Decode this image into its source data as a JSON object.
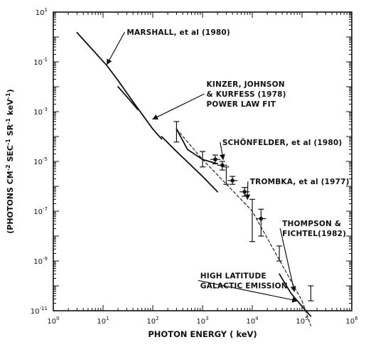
{
  "chart_data": {
    "type": "line",
    "title": "",
    "xlabel": "PHOTON ENERGY ( keV)",
    "ylabel": "(PHOTONS CM-2 SEC-1 SR-1 keV-1)",
    "ylabel_parts": [
      "(PHOTONS CM",
      "-2",
      " SEC",
      "-1",
      " SR",
      "-1",
      " keV",
      "-1",
      ")"
    ],
    "xscale": "log",
    "yscale": "log",
    "xlim": [
      1,
      1000000
    ],
    "ylim": [
      1e-11,
      10
    ],
    "grid": false,
    "x_ticks": [
      {
        "base": "10",
        "exp": "0"
      },
      {
        "base": "10",
        "exp": "1"
      },
      {
        "base": "10",
        "exp": "2"
      },
      {
        "base": "10",
        "exp": "3"
      },
      {
        "base": "10",
        "exp": "4"
      },
      {
        "base": "10",
        "exp": "5"
      },
      {
        "base": "10",
        "exp": "6"
      }
    ],
    "y_ticks": [
      {
        "base": "10",
        "exp": "1"
      },
      {
        "base": "10",
        "exp": "-1"
      },
      {
        "base": "10",
        "exp": "-3"
      },
      {
        "base": "10",
        "exp": "-5"
      },
      {
        "base": "10",
        "exp": "-7"
      },
      {
        "base": "10",
        "exp": "-9"
      },
      {
        "base": "10",
        "exp": "-11"
      }
    ],
    "series": [
      {
        "style": "solid",
        "x": [
          3,
          12,
          20,
          40,
          100,
          150
        ],
        "y": [
          1.5,
          0.07,
          0.018,
          0.0025,
          0.0002,
          8e-05
        ]
      },
      {
        "style": "solid",
        "x": [
          20,
          30,
          50
        ],
        "y": [
          0.01,
          0.004,
          0.0012
        ]
      },
      {
        "style": "solid",
        "x": [
          150,
          300,
          1000,
          2000
        ],
        "y": [
          0.0001,
          2.5e-05,
          2.5e-06,
          6e-07
        ]
      },
      {
        "style": "solid",
        "x": [
          300,
          500,
          1000,
          2000
        ],
        "y": [
          0.0002,
          3e-05,
          1.2e-05,
          8e-06
        ]
      },
      {
        "style": "dashed",
        "x": [
          300,
          1000,
          10000,
          100000,
          150000
        ],
        "y": [
          0.0002,
          1.2e-05,
          1e-07,
          2.5e-11,
          2.5e-12
        ]
      },
      {
        "style": "solid",
        "x": [
          35000,
          60000,
          100000,
          150000
        ],
        "y": [
          3e-10,
          5e-11,
          1.5e-11,
          6e-12
        ]
      }
    ],
    "error_points": [
      {
        "x": 300,
        "y": 0.00015,
        "ylo": 6e-05,
        "yhi": 0.0004,
        "marker": false
      },
      {
        "x": 1000,
        "y": 1.2e-05,
        "ylo": 6e-06,
        "yhi": 2.5e-05,
        "marker": false
      },
      {
        "x": 1800,
        "y": 1.2e-05,
        "ylo": 8e-06,
        "yhi": 1.8e-05,
        "marker": true
      },
      {
        "x": 2500,
        "y": 7e-06,
        "ylo": 4.5e-06,
        "yhi": 1e-05,
        "marker": true
      },
      {
        "x": 3000,
        "y": 3e-06,
        "ylo": 1.2e-06,
        "yhi": 6e-06,
        "marker": false
      },
      {
        "x": 4000,
        "y": 1.7e-06,
        "ylo": 1.2e-06,
        "yhi": 2.5e-06,
        "marker": true
      },
      {
        "x": 7000,
        "y": 6e-07,
        "ylo": 4e-07,
        "yhi": 9e-07,
        "marker": true
      },
      {
        "x": 10000,
        "y": 6e-08,
        "ylo": 6e-09,
        "yhi": 3e-07,
        "marker": false
      },
      {
        "x": 15000,
        "y": 5e-08,
        "ylo": 1e-08,
        "yhi": 1.2e-07,
        "marker": true
      },
      {
        "x": 35000,
        "y": 2e-09,
        "ylo": 1e-09,
        "yhi": 4e-09,
        "marker": false
      },
      {
        "x": 150000,
        "y": 5e-11,
        "ylo": 2.5e-11,
        "yhi": 1e-10,
        "marker": false
      }
    ],
    "annotations": [
      {
        "lines": [
          "MARSHALL, et al (1980)"
        ],
        "x": 30,
        "y": 1.2,
        "arrow_to": {
          "x": 12,
          "y": 0.08
        }
      },
      {
        "lines": [
          "KINZER, JOHNSON",
          "& KURFESS (1978)",
          "POWER LAW FIT"
        ],
        "x": 1200,
        "y": 0.01,
        "arrow_to": {
          "x": 100,
          "y": 0.0005
        }
      },
      {
        "lines": [
          "SCHÖNFELDER, et al (1980)"
        ],
        "x": 2500,
        "y": 4.5e-05,
        "arrow_to": {
          "x": 2600,
          "y": 1.2e-05
        }
      },
      {
        "lines": [
          "TROMBKA, et al (1977)"
        ],
        "x": 9000,
        "y": 1.2e-06,
        "arrow_to": {
          "x": 8000,
          "y": 3e-07
        }
      },
      {
        "lines": [
          "THOMPSON &",
          "FICHTEL(1982)"
        ],
        "x": 40000,
        "y": 2.5e-08,
        "arrow_to": {
          "x": 70000,
          "y": 6e-11
        }
      },
      {
        "lines": [
          "HIGH LATITUDE",
          "GALACTIC EMISSION"
        ],
        "x": 900,
        "y": 2e-10,
        "arrow_to": {
          "x": 80000,
          "y": 2.5e-11
        }
      }
    ]
  }
}
